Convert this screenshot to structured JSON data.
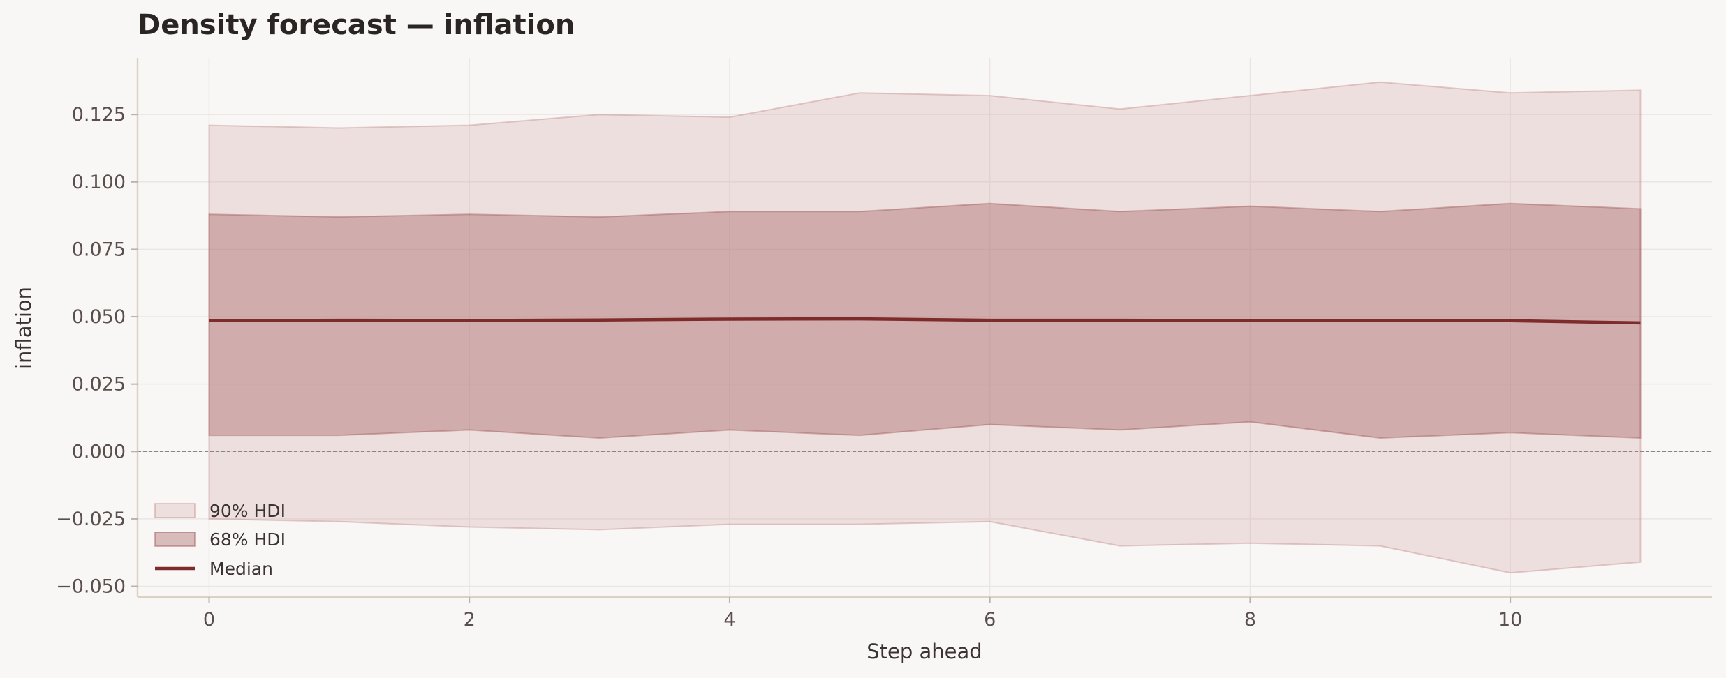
{
  "chart_data": {
    "type": "area",
    "title": "Density forecast — inflation",
    "xlabel": "Step ahead",
    "ylabel": "inflation",
    "x": [
      0,
      1,
      2,
      3,
      4,
      5,
      6,
      7,
      8,
      9,
      10,
      11
    ],
    "xlim": [
      -0.55,
      11.55
    ],
    "ylim": [
      -0.054,
      0.146
    ],
    "xticks": [
      0,
      2,
      4,
      6,
      8,
      10
    ],
    "yticks": [
      -0.05,
      -0.025,
      0.0,
      0.025,
      0.05,
      0.075,
      0.1,
      0.125
    ],
    "ytick_labels": [
      "−0.050",
      "−0.025",
      "0.000",
      "0.025",
      "0.050",
      "0.075",
      "0.100",
      "0.125"
    ],
    "grid": true,
    "reference_line_y": 0.0,
    "legend_position": "lower-left",
    "series": [
      {
        "name": "90% HDI",
        "kind": "band",
        "color": "#c48f8f",
        "upper": [
          0.121,
          0.12,
          0.121,
          0.125,
          0.124,
          0.133,
          0.132,
          0.127,
          0.132,
          0.137,
          0.133,
          0.134
        ],
        "lower": [
          -0.025,
          -0.026,
          -0.028,
          -0.029,
          -0.027,
          -0.027,
          -0.026,
          -0.035,
          -0.034,
          -0.035,
          -0.045,
          -0.041
        ]
      },
      {
        "name": "68% HDI",
        "kind": "band",
        "color": "#a15b5b",
        "upper": [
          0.088,
          0.087,
          0.088,
          0.087,
          0.089,
          0.089,
          0.092,
          0.089,
          0.091,
          0.089,
          0.092,
          0.09
        ],
        "lower": [
          0.006,
          0.006,
          0.008,
          0.005,
          0.008,
          0.006,
          0.01,
          0.008,
          0.011,
          0.005,
          0.007,
          0.005
        ]
      },
      {
        "name": "Median",
        "kind": "line",
        "color": "#7e2b2b",
        "values": [
          0.0485,
          0.0487,
          0.0486,
          0.0488,
          0.0491,
          0.0492,
          0.0487,
          0.0487,
          0.0485,
          0.0486,
          0.0485,
          0.0477
        ]
      }
    ]
  }
}
